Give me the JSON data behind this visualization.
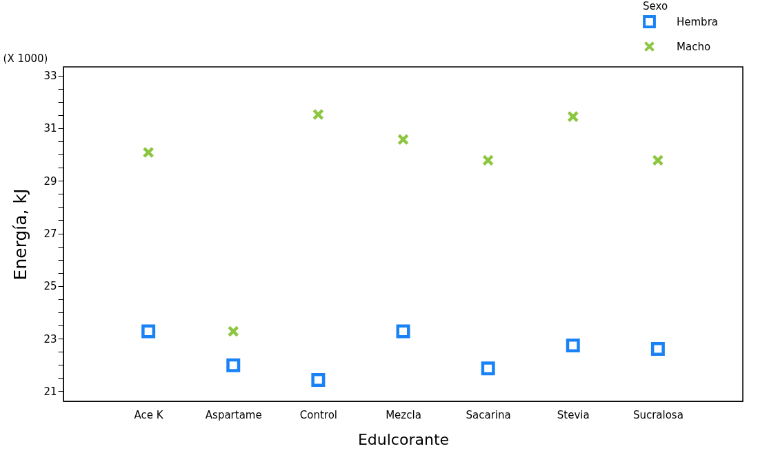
{
  "chart_data": {
    "type": "scatter",
    "xlabel": "Edulcorante",
    "ylabel": "Energía, kJ",
    "legend_title": "Sexo",
    "legend": "top right",
    "grid": false,
    "annotations": [
      "(X 1000)"
    ],
    "categories": [
      "Ace K",
      "Aspartame",
      "Control",
      "Mezcla",
      "Sacarina",
      "Stevia",
      "Sucralosa"
    ],
    "ylim": [
      20.62,
      33.33
    ],
    "yticks": [
      21,
      {
        "value": 21.5,
        "label": null
      },
      {
        "value": 22,
        "label": null
      },
      {
        "value": 22.5,
        "label": null
      },
      23,
      {
        "value": 23.5,
        "label": null
      },
      {
        "value": 24,
        "label": null
      },
      {
        "value": 24.5,
        "label": null
      },
      25,
      {
        "value": 25.5,
        "label": null
      },
      {
        "value": 26,
        "label": null
      },
      {
        "value": 26.5,
        "label": null
      },
      27,
      {
        "value": 27.5,
        "label": null
      },
      {
        "value": 28,
        "label": null
      },
      {
        "value": 28.5,
        "label": null
      },
      29,
      {
        "value": 29.5,
        "label": null
      },
      {
        "value": 30,
        "label": null
      },
      {
        "value": 30.5,
        "label": null
      },
      31,
      {
        "value": 31.5,
        "label": null
      },
      {
        "value": 32,
        "label": null
      },
      {
        "value": 32.5,
        "label": null
      },
      33
    ],
    "series": [
      {
        "name": "Hembra",
        "color": "#1a82f7",
        "marker": "square",
        "values": [
          23.28,
          21.99,
          21.43,
          23.28,
          21.87,
          22.74,
          22.61
        ]
      },
      {
        "name": "Macho",
        "color": "#8cc63f",
        "marker": "cross",
        "values": [
          30.08,
          23.28,
          31.52,
          30.57,
          29.78,
          31.44,
          29.78
        ]
      }
    ]
  }
}
